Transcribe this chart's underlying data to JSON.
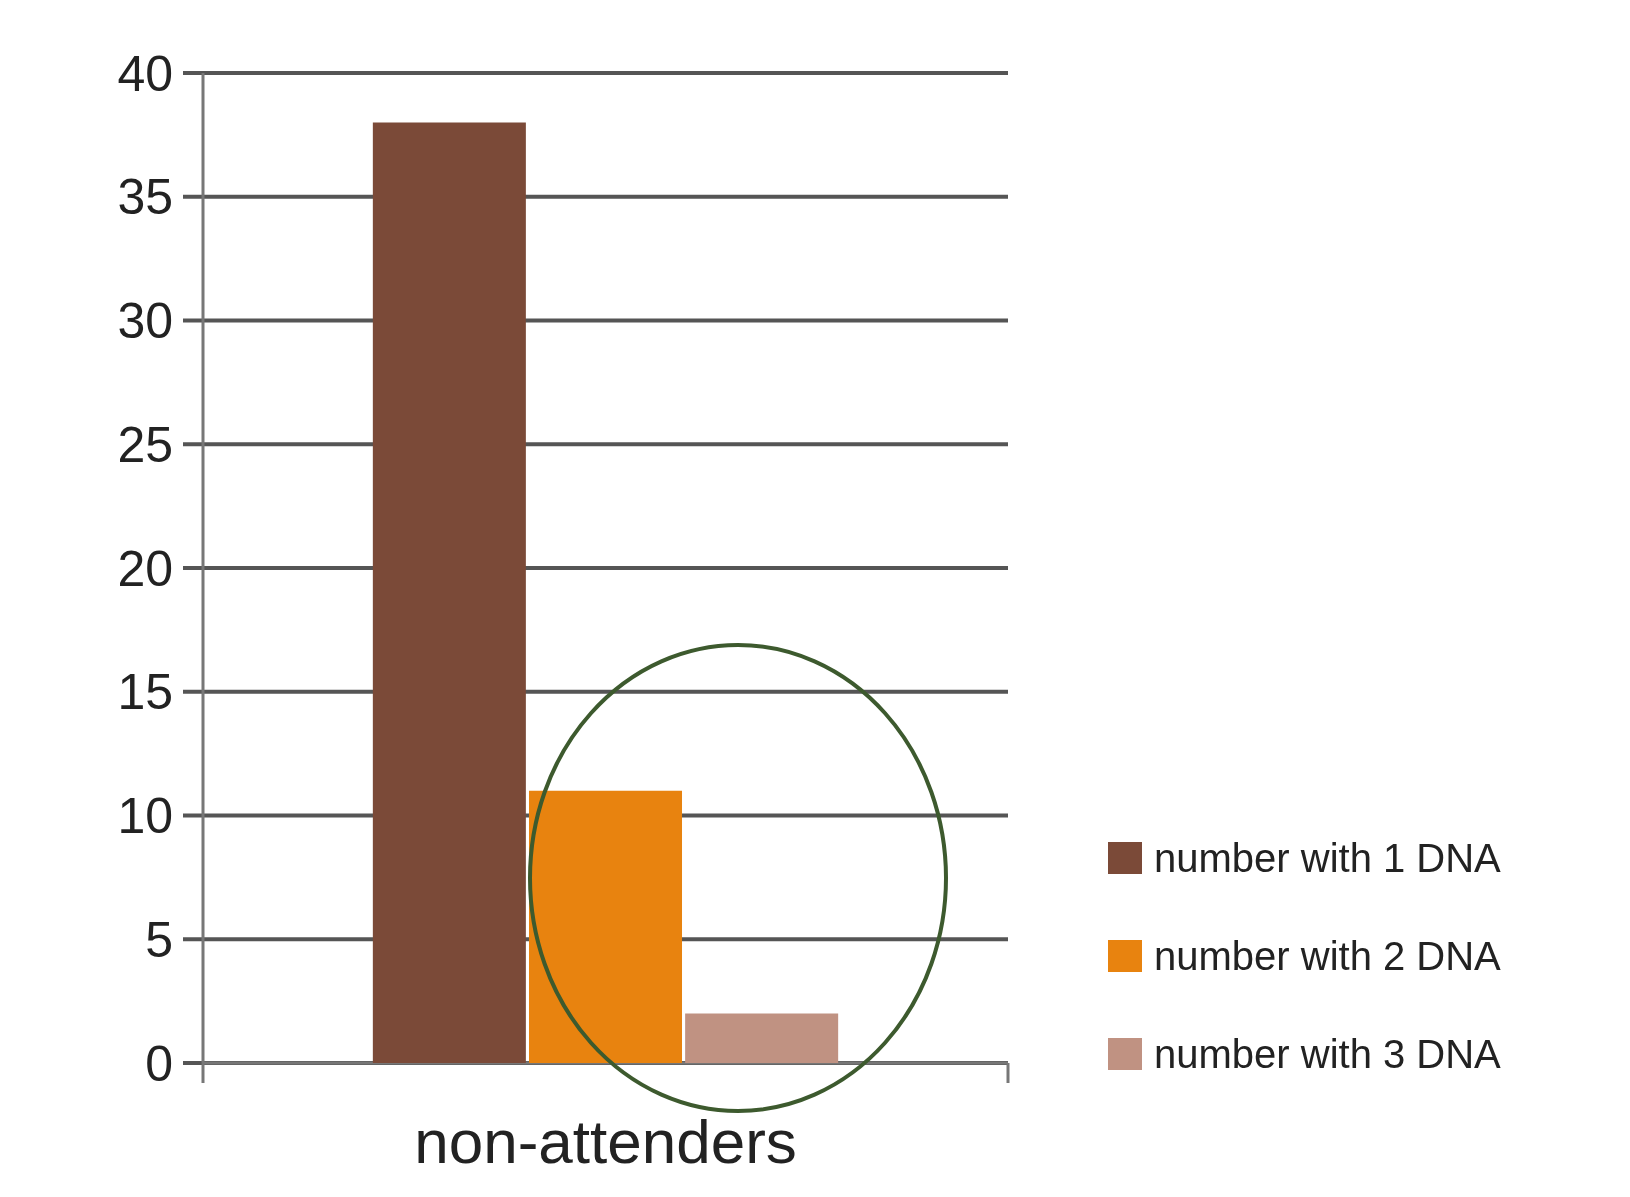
{
  "chart_data": {
    "type": "bar",
    "categories": [
      "non-attenders"
    ],
    "series": [
      {
        "name": "number with 1 DNA",
        "color": "#7b4a38",
        "values": [
          38
        ]
      },
      {
        "name": "number with 2 DNA",
        "color": "#e8830f",
        "values": [
          11
        ]
      },
      {
        "name": "number with 3 DNA",
        "color": "#c09282",
        "values": [
          2
        ]
      }
    ],
    "ylim": [
      0,
      40
    ],
    "yticks": [
      0,
      5,
      10,
      15,
      20,
      25,
      30,
      35,
      40
    ],
    "grid": "y",
    "legend": "right"
  }
}
